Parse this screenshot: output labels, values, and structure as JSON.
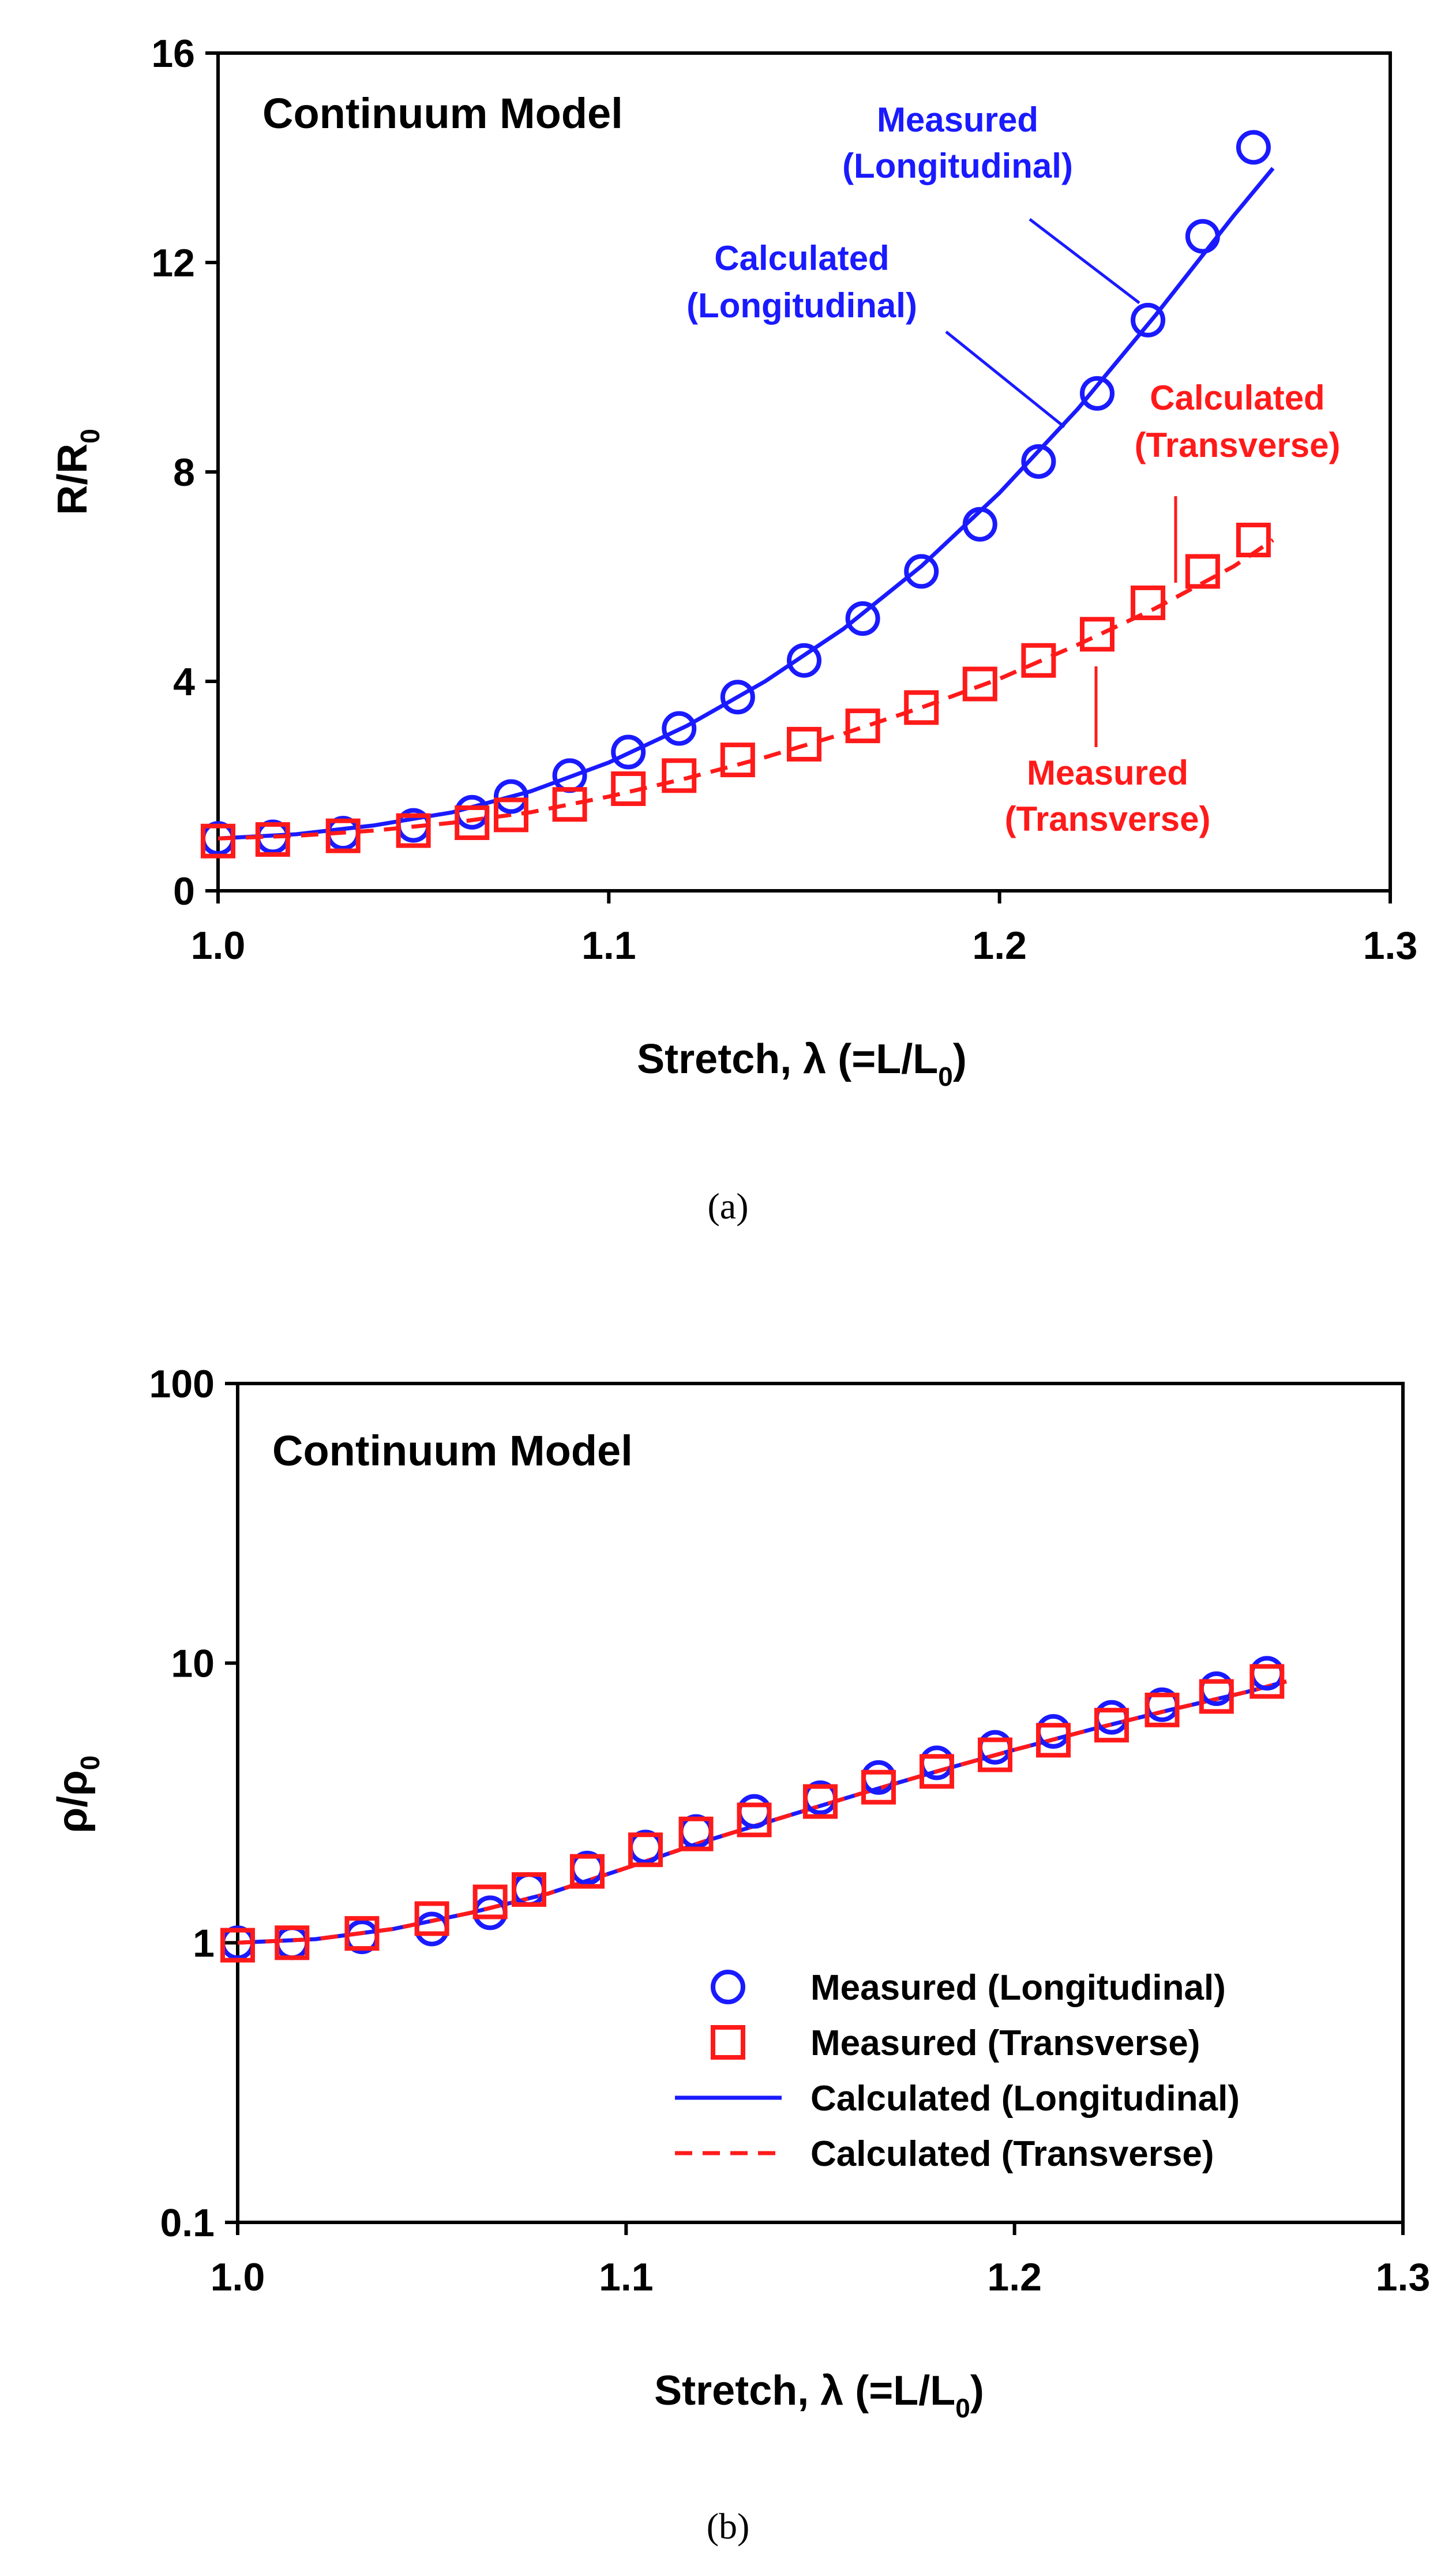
{
  "chart_data": [
    {
      "type": "scatter",
      "title": "Continuum Model",
      "xlabel": "Stretch, λ (=L/L",
      "xlabel_sub": "0",
      "xlabel_end": ")",
      "ylabel": "R/R",
      "ylabel_sub": "0",
      "xlim": [
        1.0,
        1.3
      ],
      "ylim": [
        0,
        16
      ],
      "xticks": [
        "1.0",
        "1.1",
        "1.2",
        "1.3"
      ],
      "yticks": [
        "0",
        "4",
        "8",
        "12",
        "16"
      ],
      "caption": "(a)",
      "colors": {
        "longitudinal": "#1a1aff",
        "transverse": "#ff1a1a"
      },
      "series": [
        {
          "name": "Measured (Longitudinal)",
          "marker": "circle",
          "x": [
            1.0,
            1.014,
            1.032,
            1.05,
            1.065,
            1.075,
            1.09,
            1.105,
            1.118,
            1.133,
            1.15,
            1.165,
            1.18,
            1.195,
            1.21,
            1.225,
            1.238,
            1.252,
            1.265
          ],
          "y": [
            1.0,
            1.03,
            1.1,
            1.25,
            1.5,
            1.8,
            2.2,
            2.65,
            3.1,
            3.7,
            4.4,
            5.2,
            6.1,
            7.0,
            8.2,
            9.5,
            10.9,
            12.5,
            14.2
          ]
        },
        {
          "name": "Measured (Transverse)",
          "marker": "square",
          "x": [
            1.0,
            1.014,
            1.032,
            1.05,
            1.065,
            1.075,
            1.09,
            1.105,
            1.118,
            1.133,
            1.15,
            1.165,
            1.18,
            1.195,
            1.21,
            1.225,
            1.238,
            1.252,
            1.265
          ],
          "y": [
            0.95,
            0.98,
            1.05,
            1.15,
            1.3,
            1.45,
            1.65,
            1.95,
            2.2,
            2.5,
            2.8,
            3.15,
            3.5,
            3.95,
            4.4,
            4.9,
            5.5,
            6.1,
            6.7
          ]
        },
        {
          "name": "Calculated (Longitudinal)",
          "style": "solid",
          "x": [
            1.0,
            1.02,
            1.04,
            1.06,
            1.08,
            1.1,
            1.12,
            1.14,
            1.16,
            1.18,
            1.2,
            1.22,
            1.24,
            1.26,
            1.27
          ],
          "y": [
            1.0,
            1.08,
            1.25,
            1.5,
            1.9,
            2.45,
            3.15,
            4.0,
            5.0,
            6.2,
            7.6,
            9.2,
            11.0,
            12.9,
            13.8
          ]
        },
        {
          "name": "Calculated (Transverse)",
          "style": "dashed",
          "x": [
            1.0,
            1.02,
            1.04,
            1.06,
            1.08,
            1.1,
            1.12,
            1.14,
            1.16,
            1.18,
            1.2,
            1.22,
            1.24,
            1.26,
            1.27
          ],
          "y": [
            1.0,
            1.05,
            1.15,
            1.3,
            1.5,
            1.8,
            2.15,
            2.55,
            3.0,
            3.5,
            4.05,
            4.7,
            5.4,
            6.2,
            6.7
          ]
        }
      ],
      "annotations": [
        {
          "text": [
            "Measured",
            "(Longitudinal)"
          ],
          "color": "blue"
        },
        {
          "text": [
            "Calculated",
            "(Longitudinal)"
          ],
          "color": "blue"
        },
        {
          "text": [
            "Calculated",
            "(Transverse)"
          ],
          "color": "red"
        },
        {
          "text": [
            "Measured",
            "(Transverse)"
          ],
          "color": "red"
        }
      ]
    },
    {
      "type": "scatter",
      "title": "Continuum Model",
      "xlabel": "Stretch, λ (=L/L",
      "xlabel_sub": "0",
      "xlabel_end": ")",
      "ylabel": "ρ/ρ",
      "ylabel_sub": "0",
      "yscale": "log",
      "xlim": [
        1.0,
        1.3
      ],
      "ylim": [
        0.1,
        100
      ],
      "xticks": [
        "1.0",
        "1.1",
        "1.2",
        "1.3"
      ],
      "yticks": [
        "0.1",
        "1",
        "10",
        "100"
      ],
      "caption": "(b)",
      "legend_position": "bottom-right",
      "colors": {
        "longitudinal": "#1a1aff",
        "transverse": "#ff1a1a"
      },
      "series": [
        {
          "name": "Measured (Longitudinal)",
          "marker": "circle",
          "x": [
            1.0,
            1.014,
            1.032,
            1.05,
            1.065,
            1.075,
            1.09,
            1.105,
            1.118,
            1.133,
            1.15,
            1.165,
            1.18,
            1.195,
            1.21,
            1.225,
            1.238,
            1.252,
            1.265
          ],
          "y": [
            1.0,
            1.0,
            1.05,
            1.12,
            1.28,
            1.55,
            1.85,
            2.2,
            2.5,
            2.95,
            3.3,
            3.9,
            4.4,
            5.0,
            5.7,
            6.4,
            7.1,
            8.1,
            9.2
          ]
        },
        {
          "name": "Measured (Transverse)",
          "marker": "square",
          "x": [
            1.0,
            1.014,
            1.032,
            1.05,
            1.065,
            1.075,
            1.09,
            1.105,
            1.118,
            1.133,
            1.15,
            1.165,
            1.18,
            1.195,
            1.21,
            1.225,
            1.238,
            1.252,
            1.265
          ],
          "y": [
            0.98,
            1.0,
            1.08,
            1.22,
            1.4,
            1.55,
            1.8,
            2.15,
            2.45,
            2.75,
            3.2,
            3.6,
            4.1,
            4.7,
            5.3,
            6.0,
            6.8,
            7.6,
            8.6
          ]
        },
        {
          "name": "Calculated (Longitudinal)",
          "style": "solid",
          "x": [
            1.0,
            1.02,
            1.04,
            1.06,
            1.08,
            1.1,
            1.12,
            1.14,
            1.16,
            1.18,
            1.2,
            1.22,
            1.24,
            1.26,
            1.27
          ],
          "y": [
            1.0,
            1.03,
            1.12,
            1.28,
            1.5,
            1.85,
            2.3,
            2.8,
            3.4,
            4.1,
            4.9,
            5.8,
            6.8,
            7.9,
            8.6
          ]
        },
        {
          "name": "Calculated (Transverse)",
          "style": "dashed",
          "x": [
            1.0,
            1.02,
            1.04,
            1.06,
            1.08,
            1.1,
            1.12,
            1.14,
            1.16,
            1.18,
            1.2,
            1.22,
            1.24,
            1.26,
            1.27
          ],
          "y": [
            1.0,
            1.03,
            1.12,
            1.28,
            1.5,
            1.85,
            2.3,
            2.8,
            3.4,
            4.1,
            4.9,
            5.8,
            6.8,
            7.9,
            8.6
          ]
        }
      ],
      "legend": [
        "Measured (Longitudinal)",
        "Measured (Transverse)",
        "Calculated (Longitudinal)",
        "Calculated (Transverse)"
      ]
    }
  ]
}
